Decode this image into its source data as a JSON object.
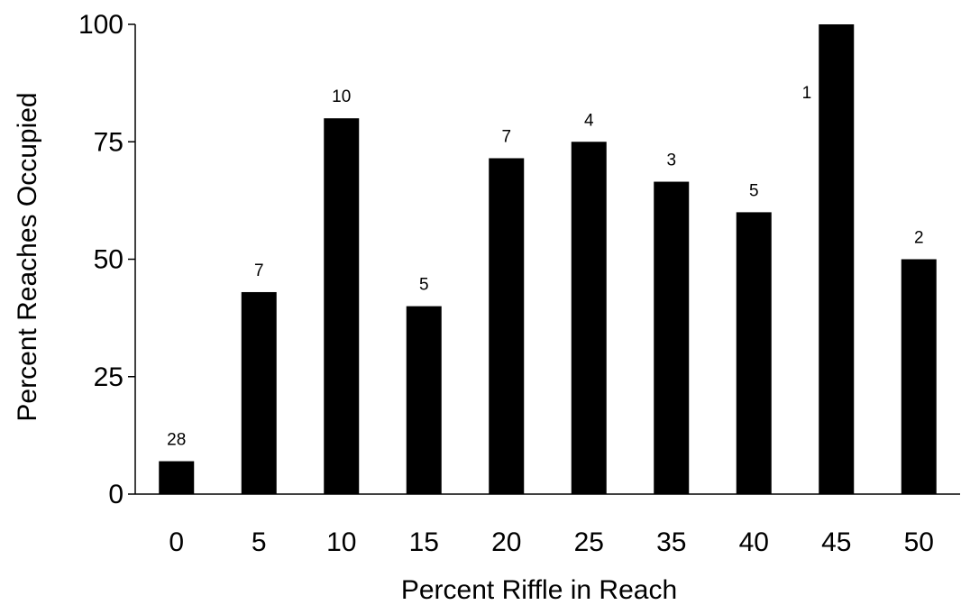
{
  "chart_data": {
    "type": "bar",
    "categories": [
      "0",
      "5",
      "10",
      "15",
      "20",
      "25",
      "35",
      "40",
      "45",
      "50"
    ],
    "values": [
      7,
      43,
      80,
      40,
      71.5,
      75,
      66.5,
      60,
      100,
      50
    ],
    "data_labels": [
      "28",
      "7",
      "10",
      "5",
      "7",
      "4",
      "3",
      "5",
      "1",
      "2"
    ],
    "title": "",
    "xlabel": "Percent Riffle in Reach",
    "ylabel": "Percent Reaches Occupied",
    "ylim": [
      0,
      100
    ],
    "yticks": [
      0,
      25,
      50,
      75,
      100
    ],
    "grid": false,
    "legend": "none",
    "bar_color": "#000000"
  }
}
